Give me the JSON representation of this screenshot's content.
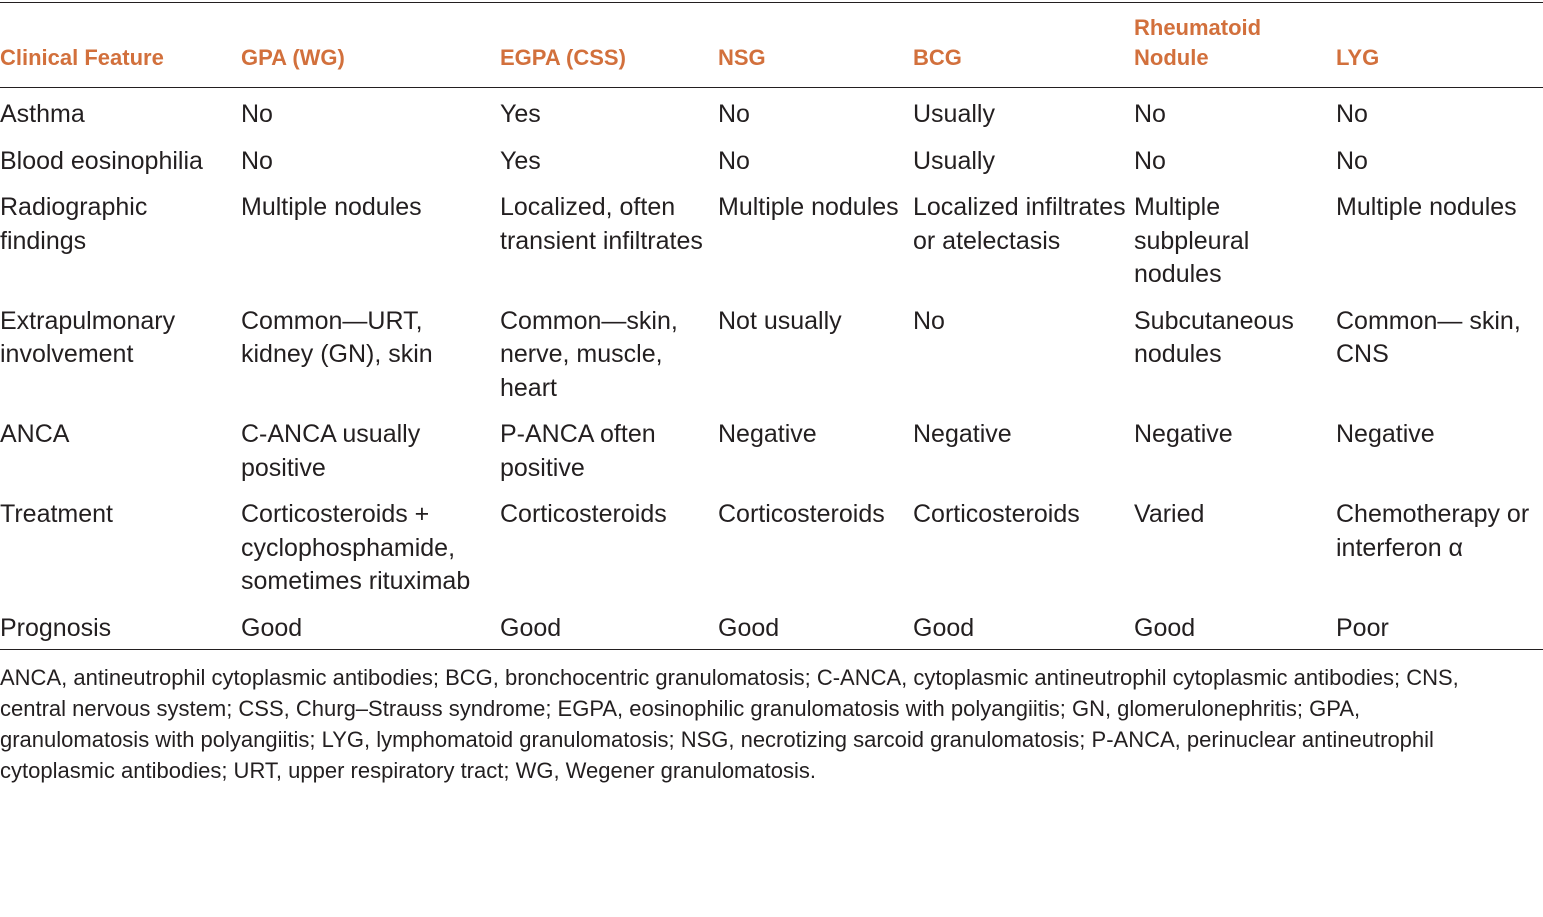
{
  "table": {
    "headers": [
      "Clinical Feature",
      "GPA (WG)",
      "EGPA (CSS)",
      "NSG",
      "BCG",
      "Rheumatoid Nodule",
      "LYG"
    ],
    "rows": [
      [
        "Asthma",
        "No",
        "Yes",
        "No",
        "Usually",
        "No",
        "No"
      ],
      [
        "Blood eosinophilia",
        "No",
        "Yes",
        "No",
        "Usually",
        "No",
        "No"
      ],
      [
        "Radiographic findings",
        "Multiple nodules",
        "Localized, often transient infiltrates",
        "Multiple nodules",
        "Localized infiltrates or atelectasis",
        "Multiple subpleural nodules",
        "Multiple nodules"
      ],
      [
        "Extrapulmonary involvement",
        "Common—URT, kidney (GN), skin",
        "Common—skin, nerve, muscle, heart",
        "Not usually",
        "No",
        "Subcutaneous nodules",
        "Common— skin, CNS"
      ],
      [
        "ANCA",
        "C-ANCA usually positive",
        "P-ANCA often positive",
        "Negative",
        "Negative",
        "Negative",
        "Negative"
      ],
      [
        "Treatment",
        "Corticosteroids + cyclophos­phamide, sometimes rituximab",
        "Corticosteroids",
        "Cortico­steroids",
        "Corticosteroids",
        "Varied",
        "Chemotherapy or interferon α"
      ],
      [
        "Prognosis",
        "Good",
        "Good",
        "Good",
        "Good",
        "Good",
        "Poor"
      ]
    ]
  },
  "footnote": "ANCA, antineutrophil cytoplasmic antibodies; BCG, bronchocentric granulomatosis; C-ANCA, cytoplasmic antineutrophil cytoplasmic antibodies; CNS, central nervous system; CSS, Churg–Strauss syndrome; EGPA, eosinophilic granulomatosis with polyangiitis; GN, glomerulonephritis; GPA, granulomatosis with polyangiitis; LYG, lymphomatoid granulomatosis; NSG, necrotizing sarcoid granulomatosis; P-ANCA, perinuclear antineutrophil cytoplasmic antibodies; URT, upper respiratory tract; WG, Wegener granulomatosis."
}
